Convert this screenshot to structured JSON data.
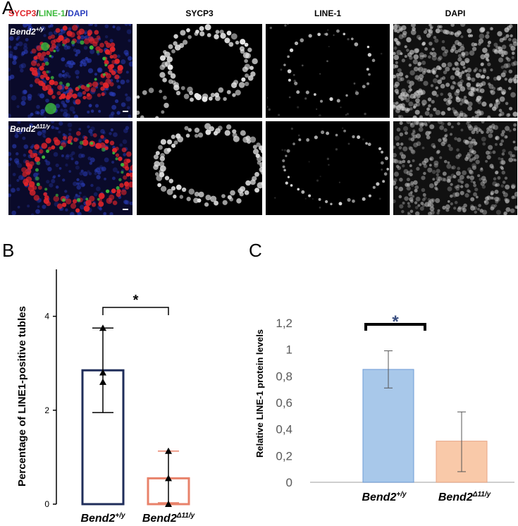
{
  "panel_a": {
    "letter": "A",
    "merged_header": {
      "sycp3": "SYCP3",
      "slash1": "/",
      "line1": "LINE-1",
      "slash2": "/",
      "dapi": "DAPI"
    },
    "column_headers": [
      "SYCP3",
      "LINE-1",
      "DAPI"
    ],
    "rows": [
      {
        "gene": "Bend2",
        "genotype": "+/y"
      },
      {
        "gene": "Bend2",
        "genotype": "Δ11/y"
      }
    ],
    "colors": {
      "sycp3": "#e0242a",
      "line1": "#3dbb3d",
      "dapi": "#2b3fbf"
    }
  },
  "panel_b": {
    "letter": "B"
  },
  "panel_c": {
    "letter": "C"
  },
  "chart_data": [
    {
      "type": "bar",
      "panel": "B",
      "categories": [
        "Bend2+/y",
        "Bend2Δ11/y"
      ],
      "category_labels": [
        {
          "gene": "Bend2",
          "genotype": "+/y"
        },
        {
          "gene": "Bend2",
          "genotype": "Δ11/y"
        }
      ],
      "values": [
        2.85,
        0.55
      ],
      "error_upper": [
        3.75,
        1.13
      ],
      "error_lower": [
        1.95,
        0.03
      ],
      "points": [
        [
          3.75,
          2.8,
          2.6
        ],
        [
          1.13,
          0.55,
          0.0
        ]
      ],
      "ylabel": "Percentage of LINE1-positive tubles",
      "xlabel": "",
      "ylim": [
        0,
        5
      ],
      "yticks": [
        "0",
        "2",
        "4"
      ],
      "significance": "*",
      "bar_colors": [
        "#1f2d5a",
        "#e8826a"
      ]
    },
    {
      "type": "bar",
      "panel": "C",
      "categories": [
        "Bend2+/y",
        "Bend2Δ11/y"
      ],
      "category_labels": [
        {
          "gene": "Bend2",
          "genotype": "+/y"
        },
        {
          "gene": "Bend2",
          "genotype": "Δ11/y"
        }
      ],
      "values": [
        0.85,
        0.31
      ],
      "error_upper": [
        0.99,
        0.53
      ],
      "error_lower": [
        0.71,
        0.08
      ],
      "ylabel": "Relative LINE-1 protein levels",
      "xlabel": "",
      "ylim": [
        0,
        1.2
      ],
      "yticks": [
        "0",
        "0,2",
        "0,4",
        "0,6",
        "0,8",
        "1",
        "1,2"
      ],
      "significance": "*",
      "bar_colors": [
        "#a8c8ea",
        "#f9c9a9"
      ]
    }
  ]
}
